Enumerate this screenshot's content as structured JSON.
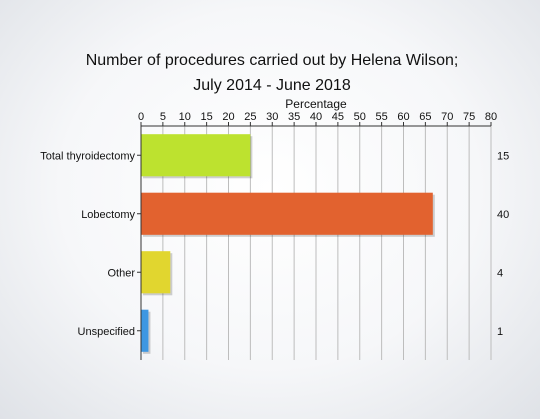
{
  "chart_data": {
    "type": "bar",
    "orientation": "horizontal",
    "title_line1": "Number of procedures carried out by Helena Wilson;",
    "title_line2": "July 2014 - June 2018",
    "xlabel": "Percentage",
    "xlim": [
      0,
      80
    ],
    "xticks": [
      "0",
      "5",
      "10",
      "15",
      "20",
      "25",
      "30",
      "35",
      "40",
      "45",
      "50",
      "55",
      "60",
      "65",
      "70",
      "75",
      "80"
    ],
    "grid": true,
    "categories": [
      "Total thyroidectomy",
      "Lobectomy",
      "Other",
      "Unspecified"
    ],
    "values": [
      25,
      66.7,
      6.7,
      1.7
    ],
    "counts": [
      "15",
      "40",
      "4",
      "1"
    ],
    "colors": [
      "#bde22f",
      "#e2622f",
      "#e1d62f",
      "#3e97e2"
    ]
  }
}
